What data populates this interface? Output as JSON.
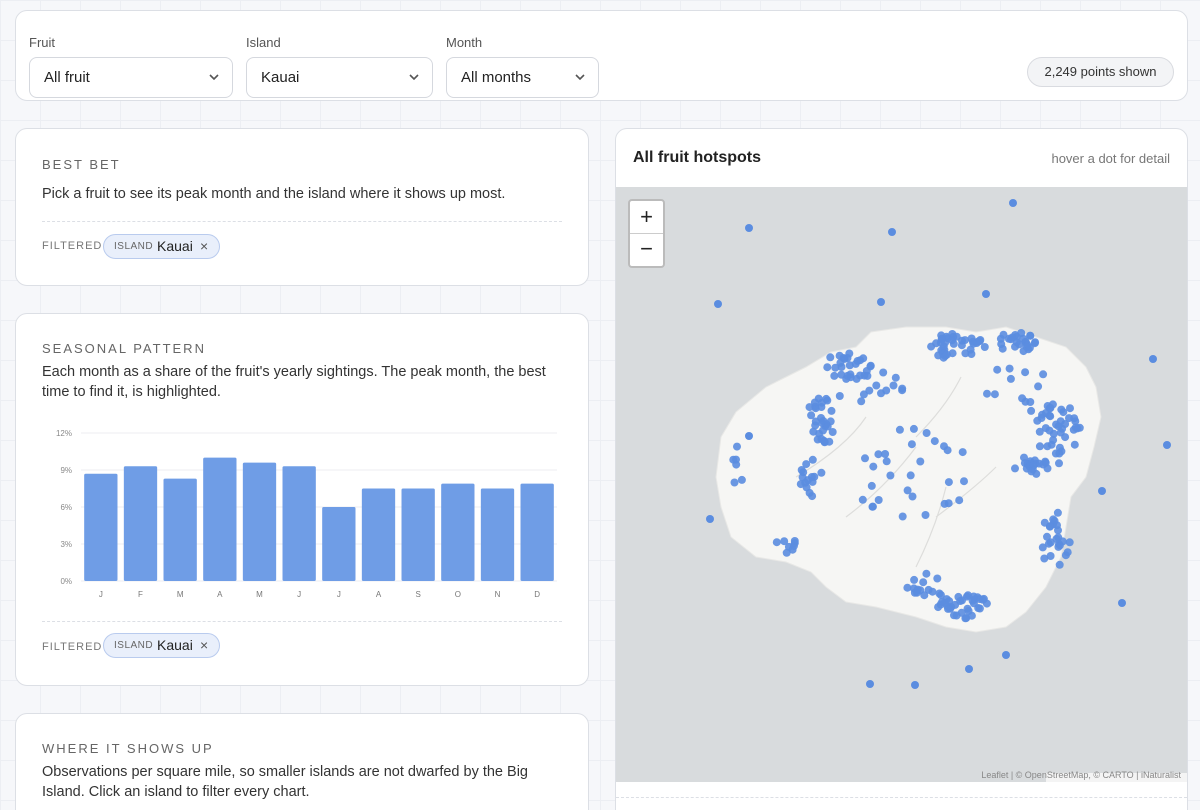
{
  "filters": [
    {
      "label": "Fruit",
      "value": "All fruit"
    },
    {
      "label": "Island",
      "value": "Kauai"
    },
    {
      "label": "Month",
      "value": "All months"
    }
  ],
  "points_badge": "2,249 points shown",
  "best_bet": {
    "title": "BEST BET",
    "text": "Pick a fruit to see its peak month and the island where it shows up most.",
    "filtered_label": "FILTERED",
    "chip_key": "ISLAND",
    "chip_value": "Kauai",
    "chip_remove": "×"
  },
  "seasonal": {
    "title": "SEASONAL PATTERN",
    "text": "Each month as a share of the fruit's yearly sightings. The peak month, the best time to find it, is highlighted.",
    "filtered_label": "FILTERED",
    "chip_key": "ISLAND",
    "chip_value": "Kauai",
    "chip_remove": "×"
  },
  "chart_data": {
    "type": "bar",
    "categories": [
      "J",
      "F",
      "M",
      "A",
      "M",
      "J",
      "J",
      "A",
      "S",
      "O",
      "N",
      "D"
    ],
    "values": [
      8.7,
      9.3,
      8.3,
      10.0,
      9.6,
      9.3,
      6.0,
      7.5,
      7.5,
      7.9,
      7.5,
      7.9
    ],
    "color": "#6f9de6",
    "ylim": [
      0,
      12
    ],
    "yticks": [
      {
        "value": 0,
        "label": "0%"
      },
      {
        "value": 3,
        "label": "3%"
      },
      {
        "value": 6,
        "label": "6%"
      },
      {
        "value": 9,
        "label": "9%"
      },
      {
        "value": 12,
        "label": "12%"
      }
    ],
    "grid": true
  },
  "where": {
    "title": "WHERE IT SHOWS UP",
    "text": "Observations per square mile, so smaller islands are not dwarfed by the Big Island. Click an island to filter every chart."
  },
  "map": {
    "title": "All fruit hotspots",
    "hint": "hover a dot for detail",
    "zoom_in": "+",
    "zoom_out": "−",
    "attribution": "Leaflet | © OpenStreetMap, © CARTO | iNaturalist"
  }
}
